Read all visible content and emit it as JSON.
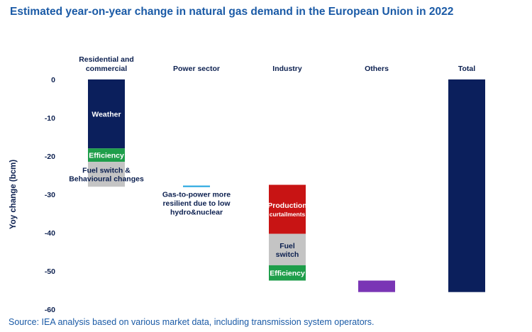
{
  "title": "Estimated year-on-year change in natural gas demand in the European Union in 2022",
  "source": "Source: IEA analysis based on various market data, including transmission system operators.",
  "chart_data": {
    "type": "bar",
    "subtype": "waterfall-stacked",
    "ylabel": "Yoy change (bcm)",
    "ylim": [
      -60,
      0
    ],
    "yticks": [
      0,
      -10,
      -20,
      -30,
      -40,
      -50,
      -60
    ],
    "grid": false,
    "categories": [
      {
        "lines": [
          "Residential and",
          "commercial"
        ]
      },
      {
        "lines": [
          "Power sector"
        ]
      },
      {
        "lines": [
          "Industry"
        ]
      },
      {
        "lines": [
          "Others"
        ]
      },
      {
        "lines": [
          "Total"
        ]
      }
    ],
    "segments": [
      {
        "category": 0,
        "name": "Weather",
        "lines": [
          "Weather"
        ],
        "start": 0,
        "end": -18,
        "color": "#0b1f5c",
        "text_color": "#ffffff"
      },
      {
        "category": 0,
        "name": "Efficiency",
        "lines": [
          "Efficiency"
        ],
        "start": -18,
        "end": -21.5,
        "color": "#1e9e4a",
        "text_color": "#ffffff"
      },
      {
        "category": 0,
        "name": "Fuel switch & Behavioural changes",
        "lines": [
          "Fuel switch &",
          "Behavioural changes"
        ],
        "start": -21.5,
        "end": -28,
        "color": "#c4c4c4",
        "text_color": "#0b1f4f"
      },
      {
        "category": 1,
        "name": "Power sector",
        "lines": [],
        "start": -27.7,
        "end": -28.1,
        "color": "#2aa8e0",
        "text_color": "#0b1f4f"
      },
      {
        "category": 2,
        "name": "Production curtailments",
        "lines": [
          "Production",
          "curtailments"
        ],
        "start": -27.5,
        "end": -40.3,
        "color": "#c81414",
        "text_color": "#ffffff"
      },
      {
        "category": 2,
        "name": "Fuel switch",
        "lines": [
          "Fuel",
          "switch"
        ],
        "start": -40.3,
        "end": -48.5,
        "color": "#c4c4c4",
        "text_color": "#0b1f4f"
      },
      {
        "category": 2,
        "name": "Efficiency",
        "lines": [
          "Efficiency"
        ],
        "start": -48.5,
        "end": -52.5,
        "color": "#1e9e4a",
        "text_color": "#ffffff"
      },
      {
        "category": 3,
        "name": "Others",
        "lines": [],
        "start": -52.5,
        "end": -55.5,
        "color": "#7a35b5",
        "text_color": "#ffffff"
      },
      {
        "category": 4,
        "name": "Total",
        "lines": [],
        "start": 0,
        "end": -55.5,
        "color": "#0b1f5c",
        "text_color": "#ffffff"
      }
    ],
    "annotations": [
      {
        "category": 1,
        "lines": [
          "Gas-to-power more",
          "resilient due to low",
          "hydro&nuclear"
        ],
        "anchor_value": -28.8
      }
    ]
  }
}
